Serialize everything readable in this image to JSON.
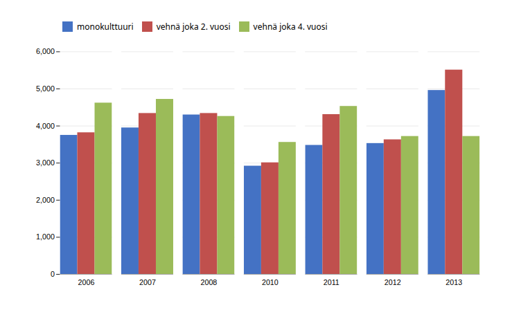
{
  "chart_data": {
    "type": "bar",
    "categories": [
      "2006",
      "2007",
      "2008",
      "2010",
      "2011",
      "2012",
      "2013"
    ],
    "series": [
      {
        "name": "monokulttuuri",
        "color": "#4472C4",
        "values": [
          3750,
          3950,
          4300,
          2920,
          3480,
          3530,
          4960
        ]
      },
      {
        "name": "vehnä joka 2. vuosi",
        "color": "#C0504D",
        "values": [
          3820,
          4340,
          4340,
          3010,
          4310,
          3630,
          5510
        ]
      },
      {
        "name": "vehnä joka 4. vuosi",
        "color": "#9BBB59",
        "values": [
          4620,
          4720,
          4260,
          3560,
          4530,
          3720,
          3720
        ]
      }
    ],
    "ylim": [
      0,
      6000
    ],
    "yticks": [
      0,
      1000,
      2000,
      3000,
      4000,
      5000,
      6000
    ],
    "grid": true,
    "legend": "upper left"
  }
}
